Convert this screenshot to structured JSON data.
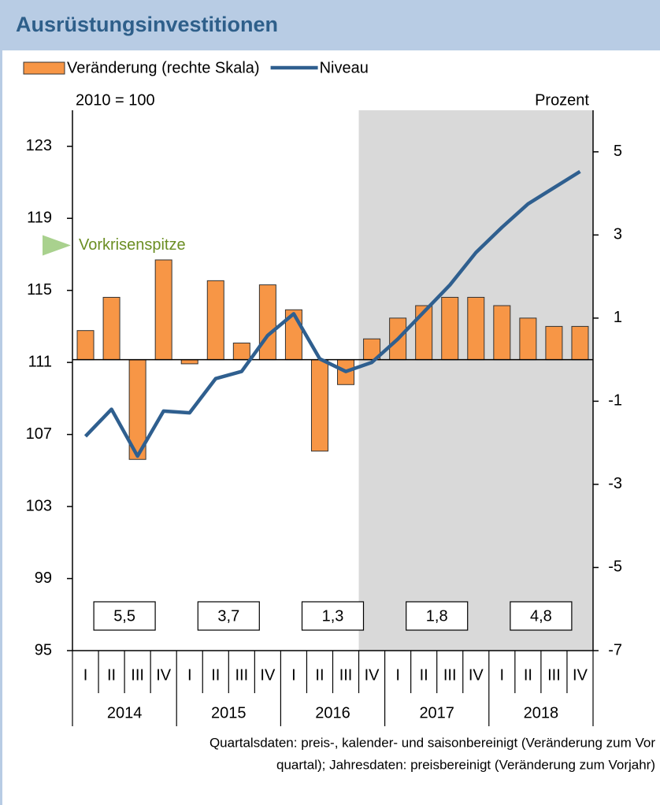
{
  "chart_data": {
    "type": "combo",
    "title": "Ausrüstungsinvestitionen",
    "y_label": "2010 = 100",
    "y2_label": "Prozent",
    "categories": [
      "I",
      "II",
      "III",
      "IV",
      "I",
      "II",
      "III",
      "IV",
      "I",
      "II",
      "III",
      "IV",
      "I",
      "II",
      "III",
      "IV",
      "I",
      "II",
      "III",
      "IV"
    ],
    "years": [
      "2014",
      "2015",
      "2016",
      "2017",
      "2018"
    ],
    "series": [
      {
        "name": "Veränderung (rechte Skala)",
        "type": "bar",
        "axis": "y2",
        "color": "#f79646",
        "values": [
          0.7,
          1.5,
          -2.4,
          2.4,
          -0.1,
          1.9,
          0.4,
          1.8,
          1.2,
          -2.2,
          -0.6,
          0.5,
          1.0,
          1.3,
          1.5,
          1.5,
          1.3,
          1.0,
          0.8,
          0.8
        ]
      },
      {
        "name": "Niveau",
        "type": "line",
        "color": "#2f5f8f",
        "values": [
          106.9,
          108.4,
          105.8,
          108.3,
          108.2,
          110.1,
          110.5,
          112.5,
          113.7,
          111.2,
          110.5,
          111.0,
          112.3,
          113.8,
          115.3,
          117.1,
          118.5,
          119.8,
          120.7,
          121.6
        ]
      }
    ],
    "annual": {
      "values": [
        5.5,
        3.7,
        1.3,
        1.8,
        4.8
      ],
      "value_labels": [
        "5,5",
        "3,7",
        "1,3",
        "1,8",
        "4,8"
      ]
    },
    "annotations": [
      {
        "text": "Vorkrisenspitze",
        "value": 117.5
      }
    ],
    "ylim": [
      95,
      125
    ],
    "yticks": [
      95,
      99,
      103,
      107,
      111,
      115,
      119,
      123
    ],
    "y2lim": [
      -7,
      6
    ],
    "y2ticks": [
      -7,
      -5,
      -3,
      -1,
      1,
      3,
      5
    ]
  },
  "footnote": [
    "Quartalsdaten: preis-, kalender- und saisonbereinigt (Veränderung zum Vor",
    "quartal); Jahresdaten: preisbereinigt (Veränderung zum Vorjahr)"
  ]
}
